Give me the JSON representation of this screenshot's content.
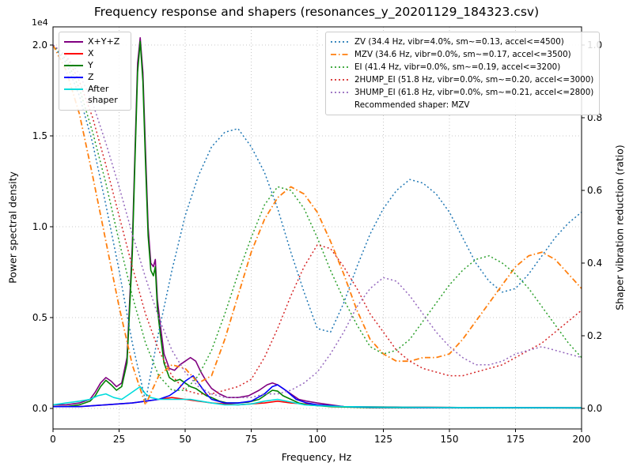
{
  "title": "Frequency response and shapers (resonances_y_20201129_184323.csv)",
  "axes": {
    "x": {
      "label": "Frequency, Hz",
      "min": 0,
      "max": 200,
      "ticks": [
        "0",
        "25",
        "50",
        "75",
        "100",
        "125",
        "150",
        "175",
        "200"
      ]
    },
    "y_left": {
      "label": "Power spectral density",
      "multiplier": "1e4",
      "ticks": [
        "0.0",
        "0.5",
        "1.0",
        "1.5",
        "2.0"
      ]
    },
    "y_right": {
      "label": "Shaper vibration reduction (ratio)",
      "ticks": [
        "0.0",
        "0.2",
        "0.4",
        "0.6",
        "0.8",
        "1.0"
      ]
    }
  },
  "legend_psd": [
    {
      "label": "X+Y+Z",
      "color": "#800080",
      "style": "solid"
    },
    {
      "label": "X",
      "color": "#ff0000",
      "style": "solid"
    },
    {
      "label": "Y",
      "color": "#008000",
      "style": "solid"
    },
    {
      "label": "Z",
      "color": "#0000ff",
      "style": "solid"
    },
    {
      "label": "After shaper",
      "color": "#00dcdc",
      "style": "solid"
    }
  ],
  "legend_shapers": {
    "items": [
      {
        "label": "ZV (34.4 Hz, vibr=4.0%, sm~=0.13, accel<=4500)",
        "color": "#1f77b4",
        "style": "dotted"
      },
      {
        "label": "MZV (34.6 Hz, vibr=0.0%, sm~=0.17, accel<=3500)",
        "color": "#ff7f0e",
        "style": "dashdot"
      },
      {
        "label": "EI (41.4 Hz, vibr=0.0%, sm~=0.19, accel<=3200)",
        "color": "#2ca02c",
        "style": "dotted"
      },
      {
        "label": "2HUMP_EI (51.8 Hz, vibr=0.0%, sm~=0.20, accel<=3000)",
        "color": "#d62728",
        "style": "dotted"
      },
      {
        "label": "3HUMP_EI (61.8 Hz, vibr=0.0%, sm~=0.21, accel<=2800)",
        "color": "#9467bd",
        "style": "dotted"
      }
    ],
    "footer": "Recommended shaper: MZV"
  },
  "chart_data": {
    "type": "line",
    "title": "Frequency response and shapers (resonances_y_20201129_184323.csv)",
    "xlabel": "Frequency, Hz",
    "ylabel": "Power spectral density",
    "ylabel_right": "Shaper vibration reduction (ratio)",
    "xlim": [
      0,
      200
    ],
    "ylim_left": [
      0,
      21000
    ],
    "ylim_right": [
      0,
      1.05
    ],
    "grid": true,
    "legend_positions": [
      "upper left",
      "upper right"
    ],
    "recommended_shaper": "MZV",
    "psd_series": [
      {
        "name": "X+Y+Z",
        "color": "#800080",
        "axis": "left",
        "x": [
          0,
          5,
          10,
          14,
          16,
          18,
          20,
          22,
          24,
          26,
          28,
          30,
          31,
          32,
          33,
          34,
          35,
          36,
          37,
          38,
          38.7,
          39.5,
          40.5,
          42,
          44,
          46,
          48,
          50,
          52,
          54,
          56,
          58,
          60,
          63,
          66,
          70,
          74,
          78,
          81,
          83,
          85,
          87,
          90,
          93,
          96,
          100,
          105,
          110,
          120,
          140,
          160,
          180,
          200
        ],
        "y": [
          200,
          200,
          300,
          500,
          900,
          1400,
          1700,
          1500,
          1200,
          1400,
          2800,
          9000,
          14000,
          19000,
          20400,
          18500,
          14200,
          10000,
          8000,
          7800,
          8200,
          6000,
          4700,
          3000,
          2200,
          2100,
          2400,
          2600,
          2800,
          2600,
          2000,
          1500,
          1100,
          800,
          600,
          600,
          700,
          1000,
          1300,
          1400,
          1300,
          1100,
          800,
          500,
          400,
          300,
          200,
          100,
          80,
          60,
          50,
          50,
          40
        ]
      },
      {
        "name": "X",
        "color": "#ff0000",
        "axis": "left",
        "x": [
          0,
          10,
          20,
          30,
          35,
          40,
          45,
          50,
          55,
          60,
          70,
          80,
          85,
          90,
          100,
          110,
          130,
          160,
          200
        ],
        "y": [
          100,
          100,
          200,
          300,
          400,
          500,
          600,
          500,
          400,
          300,
          200,
          300,
          400,
          300,
          200,
          100,
          80,
          50,
          40
        ]
      },
      {
        "name": "Y",
        "color": "#008000",
        "axis": "left",
        "x": [
          0,
          5,
          10,
          14,
          16,
          18,
          20,
          22,
          24,
          26,
          28,
          30,
          31,
          32,
          33,
          34,
          35,
          36,
          37,
          38,
          38.7,
          39.5,
          40.5,
          42,
          44,
          46,
          48,
          50,
          52,
          54,
          56,
          58,
          60,
          63,
          66,
          70,
          74,
          78,
          81,
          83,
          85,
          87,
          90,
          93,
          96,
          100,
          105,
          110,
          120,
          140,
          160,
          180,
          200
        ],
        "y": [
          100,
          100,
          200,
          400,
          700,
          1200,
          1550,
          1300,
          1000,
          1200,
          2500,
          8500,
          13500,
          18500,
          20200,
          18000,
          13500,
          9500,
          7600,
          7300,
          7800,
          5500,
          4200,
          2500,
          1700,
          1500,
          1600,
          1400,
          1200,
          1100,
          900,
          700,
          600,
          400,
          300,
          300,
          350,
          500,
          800,
          1000,
          950,
          700,
          500,
          300,
          200,
          150,
          100,
          80,
          50,
          40,
          30,
          30,
          20
        ]
      },
      {
        "name": "Z",
        "color": "#0000ff",
        "axis": "left",
        "x": [
          0,
          10,
          20,
          30,
          35,
          40,
          44,
          47,
          50,
          52,
          53,
          54,
          56,
          58,
          60,
          65,
          70,
          75,
          80,
          83,
          85,
          88,
          92,
          96,
          100,
          105,
          110,
          120,
          140,
          170,
          200
        ],
        "y": [
          100,
          100,
          200,
          300,
          400,
          500,
          700,
          1000,
          1500,
          1700,
          1800,
          1600,
          1200,
          800,
          500,
          300,
          300,
          400,
          800,
          1200,
          1300,
          1000,
          500,
          300,
          200,
          150,
          100,
          70,
          50,
          40,
          30
        ]
      },
      {
        "name": "After shaper",
        "color": "#00dcdc",
        "axis": "left",
        "x": [
          0,
          5,
          10,
          14,
          17,
          20,
          23,
          26,
          29,
          31,
          33,
          35,
          37,
          40,
          44,
          48,
          52,
          56,
          60,
          65,
          70,
          75,
          80,
          85,
          90,
          95,
          100,
          110,
          130,
          160,
          200
        ],
        "y": [
          200,
          300,
          400,
          500,
          700,
          800,
          600,
          500,
          800,
          1000,
          1200,
          800,
          600,
          500,
          500,
          500,
          500,
          400,
          300,
          200,
          200,
          250,
          400,
          500,
          350,
          200,
          150,
          100,
          70,
          50,
          40
        ]
      }
    ],
    "shaper_series": [
      {
        "name": "ZV",
        "freq_hz": 34.4,
        "vibr_pct": 4.0,
        "smoothing": 0.13,
        "max_accel": 4500,
        "color": "#1f77b4",
        "linestyle": "dotted",
        "axis": "right",
        "x": [
          0,
          5,
          10,
          15,
          20,
          25,
          30,
          35,
          40,
          45,
          50,
          55,
          60,
          65,
          70,
          75,
          80,
          85,
          90,
          95,
          100,
          105,
          110,
          115,
          120,
          125,
          130,
          135,
          140,
          145,
          150,
          155,
          160,
          165,
          170,
          175,
          180,
          185,
          190,
          195,
          200
        ],
        "y": [
          1.0,
          0.95,
          0.86,
          0.73,
          0.56,
          0.38,
          0.18,
          0.02,
          0.21,
          0.38,
          0.53,
          0.64,
          0.72,
          0.76,
          0.77,
          0.72,
          0.65,
          0.55,
          0.43,
          0.32,
          0.22,
          0.21,
          0.29,
          0.39,
          0.48,
          0.55,
          0.6,
          0.63,
          0.62,
          0.59,
          0.54,
          0.47,
          0.4,
          0.35,
          0.32,
          0.33,
          0.37,
          0.42,
          0.47,
          0.51,
          0.54
        ]
      },
      {
        "name": "MZV",
        "freq_hz": 34.6,
        "vibr_pct": 0.0,
        "smoothing": 0.17,
        "max_accel": 3500,
        "color": "#ff7f0e",
        "linestyle": "dashdot",
        "axis": "right",
        "x": [
          0,
          5,
          10,
          15,
          20,
          25,
          30,
          35,
          40,
          45,
          50,
          55,
          60,
          65,
          70,
          75,
          80,
          85,
          90,
          95,
          100,
          105,
          110,
          115,
          120,
          125,
          130,
          135,
          140,
          145,
          150,
          155,
          160,
          165,
          170,
          175,
          180,
          185,
          190,
          195,
          200
        ],
        "y": [
          1.0,
          0.93,
          0.81,
          0.64,
          0.46,
          0.28,
          0.12,
          0.01,
          0.09,
          0.12,
          0.11,
          0.07,
          0.09,
          0.19,
          0.31,
          0.43,
          0.52,
          0.58,
          0.61,
          0.59,
          0.54,
          0.46,
          0.37,
          0.27,
          0.19,
          0.15,
          0.13,
          0.13,
          0.14,
          0.14,
          0.15,
          0.19,
          0.24,
          0.29,
          0.34,
          0.39,
          0.42,
          0.43,
          0.41,
          0.37,
          0.33
        ]
      },
      {
        "name": "EI",
        "freq_hz": 41.4,
        "vibr_pct": 0.0,
        "smoothing": 0.19,
        "max_accel": 3200,
        "color": "#2ca02c",
        "linestyle": "dotted",
        "axis": "right",
        "x": [
          0,
          5,
          10,
          15,
          20,
          25,
          30,
          35,
          40,
          45,
          50,
          55,
          60,
          65,
          70,
          75,
          80,
          85,
          90,
          95,
          100,
          105,
          110,
          115,
          120,
          125,
          130,
          135,
          140,
          145,
          150,
          155,
          160,
          165,
          170,
          175,
          180,
          185,
          190,
          195,
          200
        ],
        "y": [
          1.0,
          0.96,
          0.88,
          0.76,
          0.62,
          0.46,
          0.31,
          0.18,
          0.09,
          0.05,
          0.05,
          0.09,
          0.16,
          0.26,
          0.37,
          0.47,
          0.56,
          0.61,
          0.6,
          0.55,
          0.47,
          0.38,
          0.3,
          0.23,
          0.17,
          0.15,
          0.16,
          0.19,
          0.24,
          0.29,
          0.34,
          0.38,
          0.41,
          0.42,
          0.4,
          0.37,
          0.33,
          0.28,
          0.23,
          0.18,
          0.14
        ]
      },
      {
        "name": "2HUMP_EI",
        "freq_hz": 51.8,
        "vibr_pct": 0.0,
        "smoothing": 0.2,
        "max_accel": 3000,
        "color": "#d62728",
        "linestyle": "dotted",
        "axis": "right",
        "x": [
          0,
          5,
          10,
          15,
          20,
          25,
          30,
          35,
          40,
          45,
          50,
          55,
          60,
          65,
          70,
          75,
          80,
          85,
          90,
          95,
          100,
          105,
          110,
          115,
          120,
          125,
          130,
          135,
          140,
          145,
          150,
          155,
          160,
          165,
          170,
          175,
          180,
          185,
          190,
          195,
          200
        ],
        "y": [
          1.0,
          0.97,
          0.9,
          0.8,
          0.67,
          0.53,
          0.39,
          0.26,
          0.16,
          0.09,
          0.05,
          0.04,
          0.04,
          0.05,
          0.06,
          0.08,
          0.14,
          0.22,
          0.31,
          0.39,
          0.45,
          0.44,
          0.39,
          0.33,
          0.26,
          0.21,
          0.16,
          0.13,
          0.11,
          0.1,
          0.09,
          0.09,
          0.1,
          0.11,
          0.12,
          0.14,
          0.16,
          0.18,
          0.21,
          0.24,
          0.27
        ]
      },
      {
        "name": "3HUMP_EI",
        "freq_hz": 61.8,
        "vibr_pct": 0.0,
        "smoothing": 0.21,
        "max_accel": 2800,
        "color": "#9467bd",
        "linestyle": "dotted",
        "axis": "right",
        "x": [
          0,
          5,
          10,
          15,
          20,
          25,
          30,
          35,
          40,
          45,
          50,
          55,
          60,
          65,
          70,
          75,
          80,
          85,
          90,
          95,
          100,
          105,
          110,
          115,
          120,
          125,
          130,
          135,
          140,
          145,
          150,
          155,
          160,
          165,
          170,
          175,
          180,
          185,
          190,
          195,
          200
        ],
        "y": [
          1.0,
          0.97,
          0.92,
          0.84,
          0.73,
          0.61,
          0.48,
          0.36,
          0.25,
          0.16,
          0.1,
          0.06,
          0.04,
          0.03,
          0.03,
          0.03,
          0.04,
          0.04,
          0.05,
          0.07,
          0.1,
          0.15,
          0.21,
          0.28,
          0.33,
          0.36,
          0.35,
          0.31,
          0.26,
          0.21,
          0.17,
          0.14,
          0.12,
          0.12,
          0.13,
          0.15,
          0.16,
          0.17,
          0.16,
          0.15,
          0.14
        ]
      }
    ]
  }
}
